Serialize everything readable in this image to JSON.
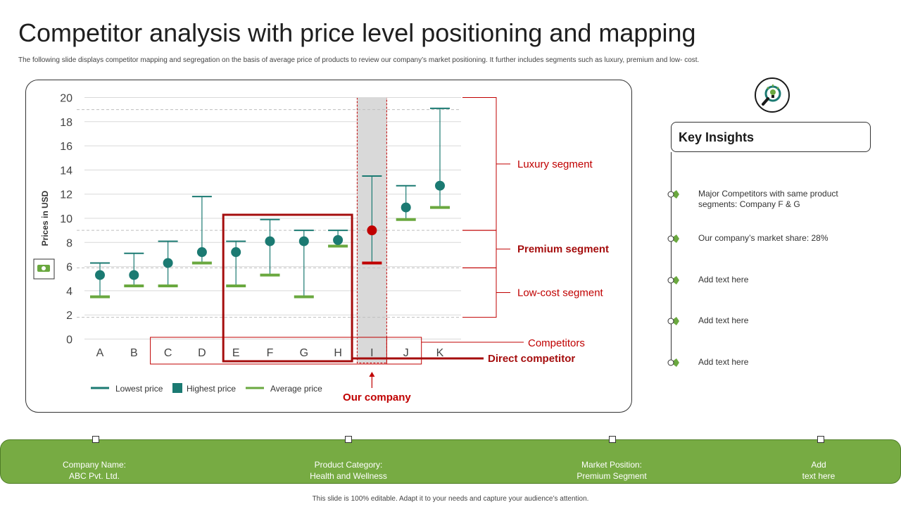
{
  "page": {
    "title": "Competitor analysis with price level positioning and mapping",
    "subtitle": "The following slide displays competitor mapping and segregation on the basis of average price of products to review our company’s market positioning. It further includes segments such as luxury, premium and low- cost.",
    "footnote": "This slide is 100% editable. Adapt it to your needs and capture your audience’s attention."
  },
  "chart_data": {
    "type": "scatter",
    "categories": [
      "A",
      "B",
      "C",
      "D",
      "E",
      "F",
      "G",
      "H",
      "I",
      "J",
      "K"
    ],
    "series": [
      {
        "name": "Lowest price",
        "values": [
          3.5,
          4.4,
          4.4,
          6.3,
          4.4,
          5.3,
          3.5,
          7.7,
          6.3,
          9.9,
          10.9
        ]
      },
      {
        "name": "Highest price",
        "values": [
          6.3,
          7.1,
          8.1,
          11.8,
          8.1,
          9.9,
          9.0,
          9.0,
          13.5,
          12.7,
          19.1
        ]
      },
      {
        "name": "Average price",
        "values": [
          5.3,
          5.3,
          6.3,
          7.2,
          7.2,
          8.1,
          8.1,
          8.2,
          9.0,
          10.9,
          12.7
        ]
      }
    ],
    "ylabel": "Prices in USD",
    "xlabel": "",
    "ylim": [
      0,
      20
    ],
    "y_ticks": [
      "0",
      "2",
      "4",
      "6",
      "8",
      "10",
      "12",
      "14",
      "16",
      "18",
      "20"
    ],
    "grid": true,
    "legend": "bottom-left",
    "legend_entries": [
      "Lowest price",
      "Highest price",
      "Average price"
    ],
    "segments": [
      {
        "label": "Luxury segment",
        "from": 9,
        "to": 20
      },
      {
        "label": "Premium segment",
        "from": 5.9,
        "to": 9
      },
      {
        "label": "Low-cost segment",
        "from": 1.8,
        "to": 5.9
      }
    ],
    "reference_lines": [
      1.8,
      5.9,
      9,
      19
    ],
    "annotations": {
      "competitors": "Competitors",
      "direct_competitor": "Direct competitor",
      "our_company": "Our company"
    },
    "groups": {
      "direct_competitors": [
        "E",
        "F",
        "G",
        "H"
      ],
      "our_company": "I",
      "competitors": [
        "C",
        "D",
        "E",
        "F",
        "G",
        "H",
        "I",
        "J"
      ]
    },
    "colors": {
      "teal": "#1b7a72",
      "green": "#6aa83f",
      "red": "#c00000",
      "dark_red": "#a50d0d",
      "shade": "#d9d9d9"
    }
  },
  "insights": {
    "title": "Key Insights",
    "items": [
      "Major Competitors with same product segments: Company F & G",
      "Our company’s market share: 28%",
      "Add text here",
      "Add text here",
      "Add text here"
    ]
  },
  "bottom_bar": {
    "items": [
      {
        "label": "Company Name:",
        "value": "ABC Pvt. Ltd."
      },
      {
        "label": "Product Category:",
        "value": "Health and Wellness"
      },
      {
        "label": "Market Position:",
        "value": "Premium Segment"
      },
      {
        "label": "Add",
        "value": "text here"
      }
    ]
  }
}
